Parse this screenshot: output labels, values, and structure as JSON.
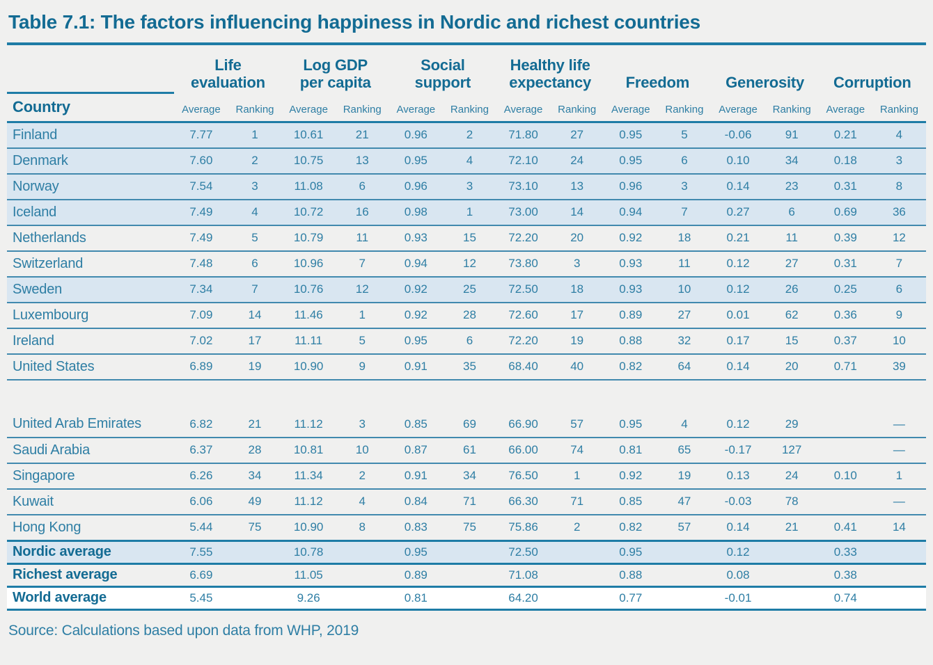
{
  "chart_data": {
    "type": "table",
    "title": "Table 7.1: The factors influencing happiness in Nordic and richest countries",
    "source": "Source: Calculations based upon data from WHP, 2019",
    "country_header": "Country",
    "column_groups": [
      {
        "lines": [
          "Life",
          "evaluation"
        ]
      },
      {
        "lines": [
          "Log GDP",
          "per capita"
        ]
      },
      {
        "lines": [
          "Social",
          "support"
        ]
      },
      {
        "lines": [
          "Healthy life",
          "expectancy"
        ]
      },
      {
        "lines": [
          "Freedom"
        ]
      },
      {
        "lines": [
          "Generosity"
        ]
      },
      {
        "lines": [
          "Corruption"
        ]
      }
    ],
    "subheaders": [
      "Average",
      "Ranking"
    ],
    "rows": [
      {
        "country": "Finland",
        "nordic": true,
        "tall": false,
        "values": [
          "7.77",
          "1",
          "10.61",
          "21",
          "0.96",
          "2",
          "71.80",
          "27",
          "0.95",
          "5",
          "-0.06",
          "91",
          "0.21",
          "4"
        ]
      },
      {
        "country": "Denmark",
        "nordic": true,
        "tall": false,
        "values": [
          "7.60",
          "2",
          "10.75",
          "13",
          "0.95",
          "4",
          "72.10",
          "24",
          "0.95",
          "6",
          "0.10",
          "34",
          "0.18",
          "3"
        ]
      },
      {
        "country": "Norway",
        "nordic": true,
        "tall": false,
        "values": [
          "7.54",
          "3",
          "11.08",
          "6",
          "0.96",
          "3",
          "73.10",
          "13",
          "0.96",
          "3",
          "0.14",
          "23",
          "0.31",
          "8"
        ]
      },
      {
        "country": "Iceland",
        "nordic": true,
        "tall": false,
        "values": [
          "7.49",
          "4",
          "10.72",
          "16",
          "0.98",
          "1",
          "73.00",
          "14",
          "0.94",
          "7",
          "0.27",
          "6",
          "0.69",
          "36"
        ]
      },
      {
        "country": "Netherlands",
        "nordic": false,
        "tall": false,
        "values": [
          "7.49",
          "5",
          "10.79",
          "11",
          "0.93",
          "15",
          "72.20",
          "20",
          "0.92",
          "18",
          "0.21",
          "11",
          "0.39",
          "12"
        ]
      },
      {
        "country": "Switzerland",
        "nordic": false,
        "tall": false,
        "values": [
          "7.48",
          "6",
          "10.96",
          "7",
          "0.94",
          "12",
          "73.80",
          "3",
          "0.93",
          "11",
          "0.12",
          "27",
          "0.31",
          "7"
        ]
      },
      {
        "country": "Sweden",
        "nordic": true,
        "tall": false,
        "values": [
          "7.34",
          "7",
          "10.76",
          "12",
          "0.92",
          "25",
          "72.50",
          "18",
          "0.93",
          "10",
          "0.12",
          "26",
          "0.25",
          "6"
        ]
      },
      {
        "country": "Luxembourg",
        "nordic": false,
        "tall": false,
        "values": [
          "7.09",
          "14",
          "11.46",
          "1",
          "0.92",
          "28",
          "72.60",
          "17",
          "0.89",
          "27",
          "0.01",
          "62",
          "0.36",
          "9"
        ]
      },
      {
        "country": "Ireland",
        "nordic": false,
        "tall": false,
        "values": [
          "7.02",
          "17",
          "11.11",
          "5",
          "0.95",
          "6",
          "72.20",
          "19",
          "0.88",
          "32",
          "0.17",
          "15",
          "0.37",
          "10"
        ]
      },
      {
        "country": "United States",
        "nordic": false,
        "tall": false,
        "values": [
          "6.89",
          "19",
          "10.90",
          "9",
          "0.91",
          "35",
          "68.40",
          "40",
          "0.82",
          "64",
          "0.14",
          "20",
          "0.71",
          "39"
        ]
      },
      {
        "country": "United Arab Emirates",
        "nordic": false,
        "tall": true,
        "values": [
          "6.82",
          "21",
          "11.12",
          "3",
          "0.85",
          "69",
          "66.90",
          "57",
          "0.95",
          "4",
          "0.12",
          "29",
          "",
          "—"
        ]
      },
      {
        "country": "Saudi Arabia",
        "nordic": false,
        "tall": false,
        "values": [
          "6.37",
          "28",
          "10.81",
          "10",
          "0.87",
          "61",
          "66.00",
          "74",
          "0.81",
          "65",
          "-0.17",
          "127",
          "",
          "—"
        ]
      },
      {
        "country": "Singapore",
        "nordic": false,
        "tall": false,
        "values": [
          "6.26",
          "34",
          "11.34",
          "2",
          "0.91",
          "34",
          "76.50",
          "1",
          "0.92",
          "19",
          "0.13",
          "24",
          "0.10",
          "1"
        ]
      },
      {
        "country": "Kuwait",
        "nordic": false,
        "tall": false,
        "values": [
          "6.06",
          "49",
          "11.12",
          "4",
          "0.84",
          "71",
          "66.30",
          "71",
          "0.85",
          "47",
          "-0.03",
          "78",
          "",
          "—"
        ]
      },
      {
        "country": "Hong Kong",
        "nordic": false,
        "tall": false,
        "values": [
          "5.44",
          "75",
          "10.90",
          "8",
          "0.83",
          "75",
          "75.86",
          "2",
          "0.82",
          "57",
          "0.14",
          "21",
          "0.41",
          "14"
        ]
      }
    ],
    "summary_rows": [
      {
        "label": "Nordic average",
        "style": "nordic",
        "values": [
          "7.55",
          "",
          "10.78",
          "",
          "0.95",
          "",
          "72.50",
          "",
          "0.95",
          "",
          "0.12",
          "",
          "0.33",
          ""
        ]
      },
      {
        "label": "Richest average",
        "style": "plain",
        "values": [
          "6.69",
          "",
          "11.05",
          "",
          "0.89",
          "",
          "71.08",
          "",
          "0.88",
          "",
          "0.08",
          "",
          "0.38",
          ""
        ]
      },
      {
        "label": "World average",
        "style": "white",
        "values": [
          "5.45",
          "",
          "9.26",
          "",
          "0.81",
          "",
          "64.20",
          "",
          "0.77",
          "",
          "-0.01",
          "",
          "0.74",
          ""
        ]
      }
    ]
  },
  "colors": {
    "accent_dark_teal": "#136b93",
    "body_text_teal": "#2e7ea4",
    "rule_teal": "#1e7ca6",
    "row_line_teal": "#4189ae",
    "nordic_row_bg": "#d9e6f1",
    "world_row_bg": "#ffffff",
    "page_bg": "#f0f0ef"
  }
}
